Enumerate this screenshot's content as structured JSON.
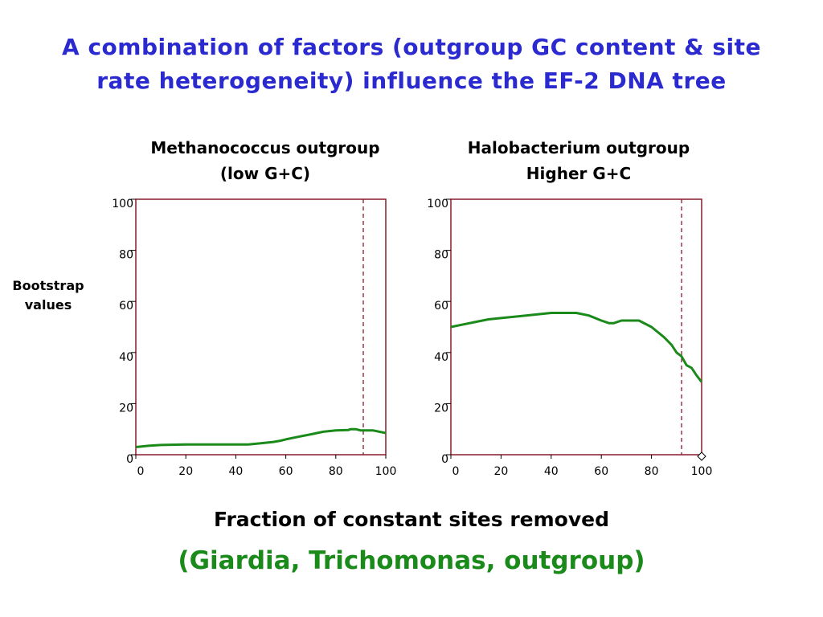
{
  "slide": {
    "title": "A combination of factors (outgroup GC content & site rate heterogeneity) influence the EF-2 DNA tree",
    "y_label_line1": "Bootstrap",
    "y_label_line2": "values",
    "x_label": "Fraction of constant sites removed",
    "subtitle": "(Giardia, Trichomonas, outgroup)"
  },
  "colors": {
    "title": "#2a2ad0",
    "frame": "#8b1a2b",
    "series": "#1a8a1a",
    "reference_line": "#8b1a2b",
    "subtitle": "#1a8a1a"
  },
  "chart_data": [
    {
      "type": "line",
      "title_line1": "Methanococcus outgroup",
      "title_line2": "(low G+C)",
      "xlim": [
        0,
        100
      ],
      "ylim": [
        0,
        100
      ],
      "x_ticks": [
        0,
        20,
        40,
        60,
        80,
        100
      ],
      "y_ticks": [
        0,
        20,
        40,
        60,
        80,
        100
      ],
      "reference_x": 91,
      "series": [
        {
          "x": [
            0,
            5,
            10,
            20,
            30,
            40,
            45,
            50,
            55,
            58,
            60,
            65,
            70,
            75,
            80,
            85,
            86,
            88,
            90,
            92,
            95,
            100
          ],
          "y": [
            3,
            3.5,
            3.8,
            4,
            4,
            4,
            4,
            4.5,
            5,
            5.5,
            6,
            7,
            8,
            9,
            9.5,
            9.7,
            10,
            10,
            9.5,
            9.5,
            9.5,
            8.5
          ]
        }
      ]
    },
    {
      "type": "line",
      "title_line1": "Halobacterium outgroup",
      "title_line2": "Higher G+C",
      "xlim": [
        0,
        100
      ],
      "ylim": [
        0,
        100
      ],
      "x_ticks": [
        0,
        20,
        40,
        60,
        80,
        100
      ],
      "y_ticks": [
        0,
        20,
        40,
        60,
        80,
        100
      ],
      "reference_x": 92,
      "series": [
        {
          "x": [
            0,
            5,
            10,
            15,
            20,
            30,
            40,
            45,
            50,
            55,
            60,
            63,
            65,
            68,
            70,
            75,
            80,
            85,
            88,
            90,
            92,
            94,
            96,
            98,
            100
          ],
          "y": [
            50,
            51,
            52,
            53,
            53.5,
            54.5,
            55.5,
            55.5,
            55.5,
            54.5,
            52.5,
            51.5,
            51.5,
            52.5,
            52.5,
            52.5,
            50,
            46,
            43,
            40,
            38.5,
            35,
            34,
            31,
            28.5
          ]
        }
      ]
    }
  ]
}
